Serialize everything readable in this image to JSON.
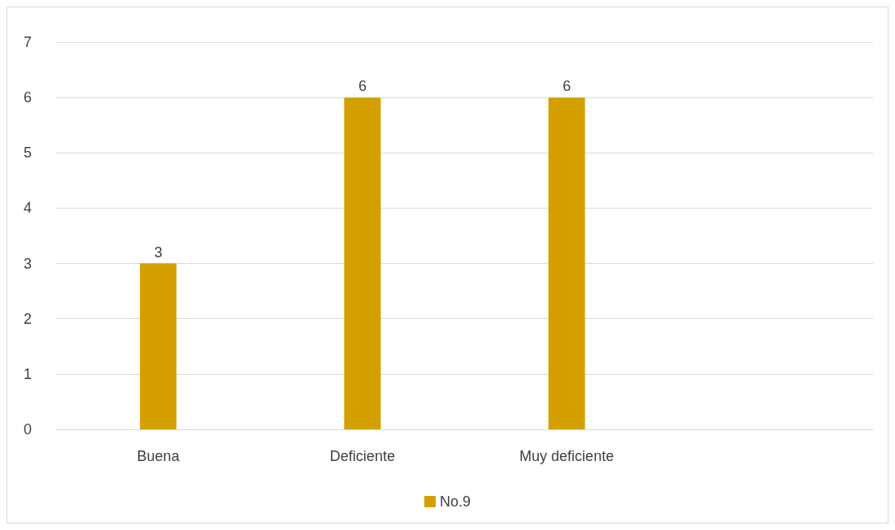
{
  "chart_data": {
    "type": "bar",
    "categories": [
      "Buena",
      "Deficiente",
      "Muy deficiente",
      null
    ],
    "series": [
      {
        "name": "No.9",
        "color": "#d4a000",
        "values": [
          3,
          6,
          6,
          null
        ]
      }
    ],
    "ylim": [
      0,
      7
    ],
    "yticks": [
      0,
      1,
      2,
      3,
      4,
      5,
      6,
      7
    ],
    "grid": "y",
    "legend": "bottom",
    "data_labels": true
  }
}
